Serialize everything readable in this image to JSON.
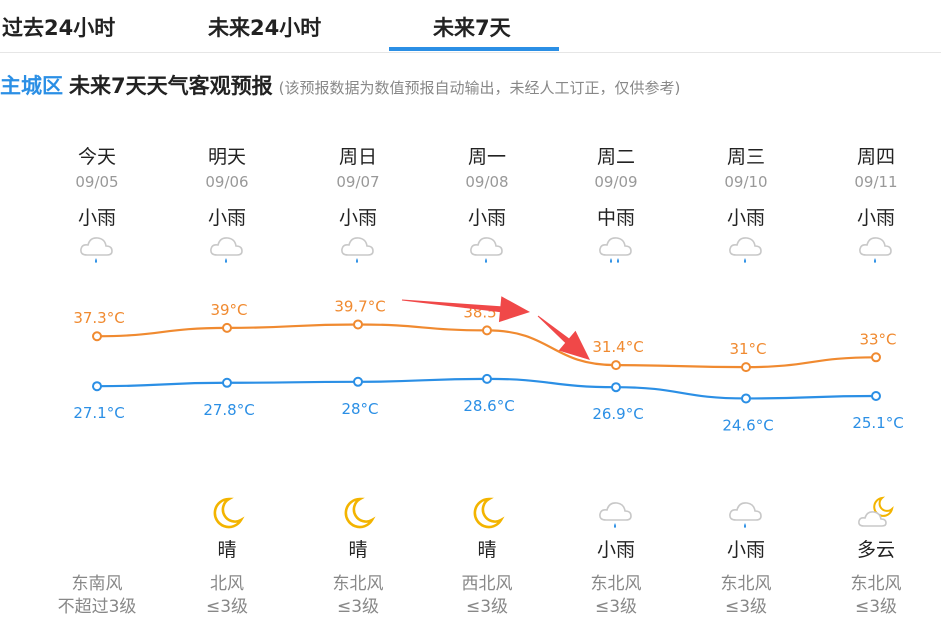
{
  "tabs": {
    "past24": "过去24小时",
    "next24": "未来24小时",
    "next7": "未来7天"
  },
  "header": {
    "region": "主城区",
    "title": "未来7天天气客观预报",
    "note": "(该预报数据为数值预报自动输出，未经人工订正，仅供参考)"
  },
  "days": [
    {
      "day": "今天",
      "date": "09/05",
      "weather": "小雨",
      "day_icon": "light-rain-icon",
      "night_icon": "",
      "night_weather": "",
      "wind_dir": "东南风",
      "wind_level": "不超过3级"
    },
    {
      "day": "明天",
      "date": "09/06",
      "weather": "小雨",
      "day_icon": "light-rain-icon",
      "night_icon": "moon-icon",
      "night_weather": "晴",
      "wind_dir": "北风",
      "wind_level": "≤3级"
    },
    {
      "day": "周日",
      "date": "09/07",
      "weather": "小雨",
      "day_icon": "light-rain-icon",
      "night_icon": "moon-icon",
      "night_weather": "晴",
      "wind_dir": "东北风",
      "wind_level": "≤3级"
    },
    {
      "day": "周一",
      "date": "09/08",
      "weather": "小雨",
      "day_icon": "light-rain-icon",
      "night_icon": "moon-icon",
      "night_weather": "晴",
      "wind_dir": "西北风",
      "wind_level": "≤3级"
    },
    {
      "day": "周二",
      "date": "09/09",
      "weather": "中雨",
      "day_icon": "moderate-rain-icon",
      "night_icon": "light-rain-icon",
      "night_weather": "小雨",
      "wind_dir": "东北风",
      "wind_level": "≤3级"
    },
    {
      "day": "周三",
      "date": "09/10",
      "weather": "小雨",
      "day_icon": "light-rain-icon",
      "night_icon": "light-rain-icon",
      "night_weather": "小雨",
      "wind_dir": "东北风",
      "wind_level": "≤3级"
    },
    {
      "day": "周四",
      "date": "09/11",
      "weather": "小雨",
      "day_icon": "light-rain-icon",
      "night_icon": "partly-cloudy-night-icon",
      "night_weather": "多云",
      "wind_dir": "东北风",
      "wind_level": "≤3级"
    }
  ],
  "chart_data": {
    "type": "line",
    "categories": [
      "09/05",
      "09/06",
      "09/07",
      "09/08",
      "09/09",
      "09/10",
      "09/11"
    ],
    "series": [
      {
        "values": [
          37.3,
          39,
          39.7,
          38.5,
          31.4,
          31,
          33
        ],
        "labels": [
          "37.3°C",
          "39°C",
          "39.7°C",
          "38.5°C",
          "31.4°C",
          "31°C",
          "33°C"
        ],
        "color": "#f08a30"
      },
      {
        "values": [
          27.1,
          27.8,
          28,
          28.6,
          26.9,
          24.6,
          25.1
        ],
        "labels": [
          "27.1°C",
          "27.8°C",
          "28°C",
          "28.6°C",
          "26.9°C",
          "24.6°C",
          "25.1°C"
        ],
        "color": "#2b8fe5"
      }
    ],
    "annotation_color": "#f04848"
  },
  "colors": {
    "accent": "#2b8fe5",
    "high": "#f08a30",
    "low": "#2b8fe5",
    "moon": "#f3b400",
    "cloud": "#c8c8c8",
    "rain": "#2b8fe5",
    "arrow": "#f04848"
  }
}
